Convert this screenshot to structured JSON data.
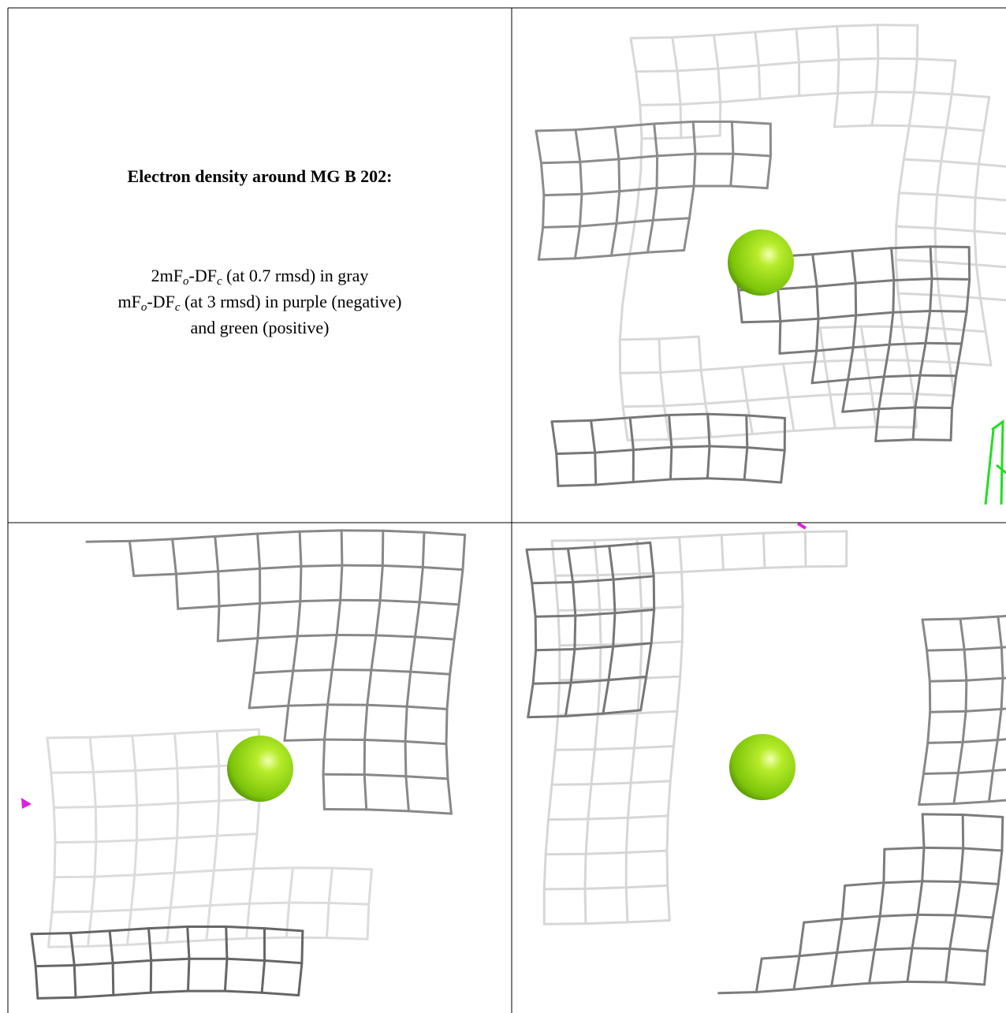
{
  "panel_text": {
    "title": "Electron density around MG B 202:",
    "lines": [
      [
        "2mF",
        "o",
        "-DF",
        "c",
        " (at 0.7 rmsd) in gray"
      ],
      [
        "mF",
        "o",
        "-DF",
        "c",
        " (at 3 rmsd) in purple (negative)"
      ],
      [
        "and green (positive)"
      ]
    ]
  }
}
